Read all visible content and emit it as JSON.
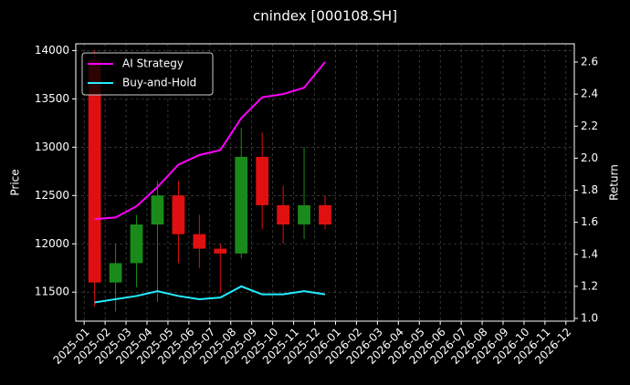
{
  "chart_data": {
    "type": "candlestick",
    "title": "cnindex [000108.SH]",
    "ylabel": "Price",
    "y2label": "Return",
    "x": [
      "2025-01",
      "2025-02",
      "2025-03",
      "2025-04",
      "2025-05",
      "2025-06",
      "2025-07",
      "2025-08",
      "2025-09",
      "2025-10",
      "2025-11",
      "2025-12"
    ],
    "open": [
      13900,
      11600,
      11800,
      12200,
      12500,
      12100,
      11950,
      11900,
      12900,
      12400,
      12200,
      12400
    ],
    "high": [
      14000,
      12000,
      12300,
      12650,
      12650,
      12300,
      12000,
      13200,
      13150,
      12600,
      13000,
      12500
    ],
    "low": [
      11350,
      11300,
      11550,
      11400,
      11800,
      11750,
      11500,
      11850,
      12150,
      12000,
      12050,
      12150
    ],
    "close": [
      11600,
      11800,
      12200,
      12500,
      12100,
      11950,
      11900,
      12900,
      12400,
      12200,
      12400,
      12200
    ],
    "up_color": "#1a8a1a",
    "down_color": "#e01010",
    "series": [
      {
        "name": "AI Strategy",
        "color": "#ff00ff",
        "axis": "y2",
        "values": [
          1.62,
          1.63,
          1.7,
          1.82,
          1.96,
          2.02,
          2.05,
          2.25,
          2.38,
          2.4,
          2.44,
          2.6
        ]
      },
      {
        "name": "Buy-and-Hold",
        "color": "#22eeff",
        "axis": "y2",
        "values": [
          1.1,
          1.12,
          1.14,
          1.17,
          1.14,
          1.12,
          1.13,
          1.2,
          1.15,
          1.15,
          1.17,
          1.15
        ]
      }
    ],
    "xlim": [
      "2025-01",
      "2026-12"
    ],
    "xticks": [
      "2025-01",
      "2025-02",
      "2025-03",
      "2025-04",
      "2025-05",
      "2025-06",
      "2025-07",
      "2025-08",
      "2025-09",
      "2025-10",
      "2025-11",
      "2025-12",
      "2026-01",
      "2026-02",
      "2026-03",
      "2026-04",
      "2026-05",
      "2026-06",
      "2026-07",
      "2026-08",
      "2026-09",
      "2026-10",
      "2026-11",
      "2026-12"
    ],
    "ylim": [
      11200,
      14070
    ],
    "yticks": [
      11500,
      12000,
      12500,
      13000,
      13500,
      14000
    ],
    "y2lim": [
      0.983,
      2.714
    ],
    "y2ticks": [
      {
        "value": 1,
        "label": "1.0"
      },
      1.2,
      1.4,
      1.6,
      1.8,
      {
        "value": 2,
        "label": "2.0"
      },
      2.2,
      2.4,
      2.6
    ],
    "grid": true,
    "legend": "upper left"
  }
}
